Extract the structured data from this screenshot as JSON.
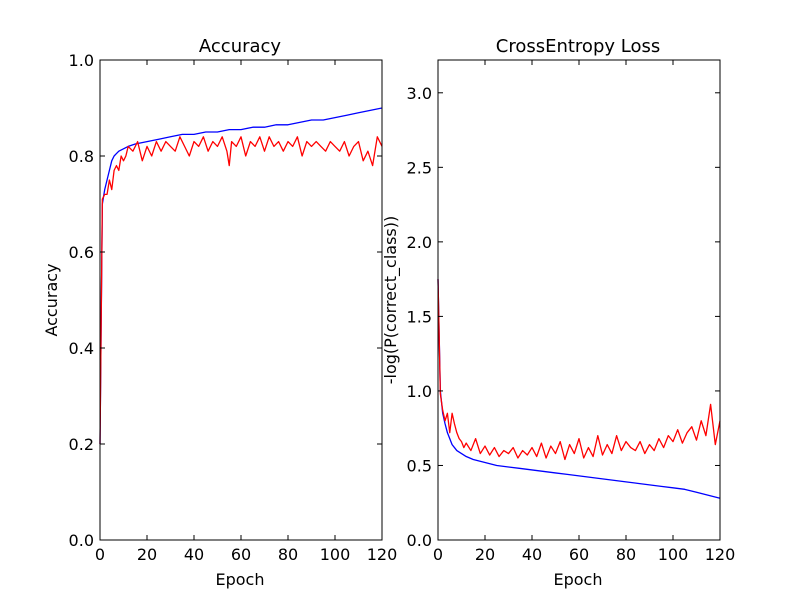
{
  "chart_data": [
    {
      "type": "line",
      "title": "Accuracy",
      "xlabel": "Epoch",
      "ylabel": "Accuracy",
      "xlim": [
        0,
        120
      ],
      "ylim": [
        0,
        1.0
      ],
      "xticks": [
        0,
        20,
        40,
        60,
        80,
        100,
        120
      ],
      "yticks": [
        0.0,
        0.2,
        0.4,
        0.6,
        0.8,
        1.0
      ],
      "xtick_labels": [
        "0",
        "20",
        "40",
        "60",
        "80",
        "100",
        "120"
      ],
      "ytick_labels": [
        "0.0",
        "0.2",
        "0.4",
        "0.6",
        "0.8",
        "1.0"
      ],
      "series": [
        {
          "color": "#0000ff",
          "x": [
            0,
            1,
            2,
            3,
            4,
            5,
            6,
            7,
            8,
            10,
            12,
            15,
            20,
            25,
            30,
            35,
            40,
            45,
            50,
            55,
            60,
            65,
            70,
            75,
            80,
            85,
            90,
            95,
            100,
            105,
            110,
            115,
            120
          ],
          "y": [
            0.2,
            0.7,
            0.73,
            0.75,
            0.77,
            0.79,
            0.8,
            0.805,
            0.81,
            0.815,
            0.82,
            0.825,
            0.83,
            0.835,
            0.84,
            0.845,
            0.845,
            0.85,
            0.85,
            0.855,
            0.855,
            0.86,
            0.86,
            0.865,
            0.865,
            0.87,
            0.875,
            0.875,
            0.88,
            0.885,
            0.89,
            0.895,
            0.9
          ]
        },
        {
          "color": "#ff0000",
          "x": [
            0,
            1,
            2,
            3,
            4,
            5,
            6,
            7,
            8,
            9,
            10,
            11,
            12,
            14,
            16,
            18,
            20,
            22,
            24,
            26,
            28,
            30,
            32,
            34,
            36,
            38,
            40,
            42,
            44,
            46,
            48,
            50,
            52,
            54,
            55,
            56,
            58,
            60,
            62,
            64,
            66,
            68,
            70,
            72,
            74,
            76,
            78,
            80,
            82,
            84,
            86,
            88,
            90,
            92,
            94,
            96,
            98,
            100,
            102,
            104,
            106,
            108,
            110,
            112,
            114,
            116,
            118,
            120
          ],
          "y": [
            0.2,
            0.71,
            0.72,
            0.72,
            0.75,
            0.73,
            0.77,
            0.78,
            0.77,
            0.8,
            0.79,
            0.8,
            0.82,
            0.81,
            0.83,
            0.79,
            0.82,
            0.8,
            0.83,
            0.81,
            0.83,
            0.82,
            0.81,
            0.84,
            0.82,
            0.8,
            0.83,
            0.82,
            0.84,
            0.81,
            0.83,
            0.82,
            0.84,
            0.81,
            0.78,
            0.83,
            0.82,
            0.84,
            0.8,
            0.83,
            0.82,
            0.84,
            0.81,
            0.84,
            0.82,
            0.83,
            0.81,
            0.83,
            0.82,
            0.84,
            0.8,
            0.83,
            0.82,
            0.83,
            0.82,
            0.81,
            0.83,
            0.82,
            0.81,
            0.83,
            0.8,
            0.82,
            0.83,
            0.79,
            0.81,
            0.78,
            0.84,
            0.82
          ]
        }
      ]
    },
    {
      "type": "line",
      "title": "CrossEntropy Loss",
      "xlabel": "Epoch",
      "ylabel": "-log(P(correct_class))",
      "xlim": [
        0,
        120
      ],
      "ylim": [
        0,
        3.22
      ],
      "xticks": [
        0,
        20,
        40,
        60,
        80,
        100,
        120
      ],
      "yticks": [
        0.0,
        0.5,
        1.0,
        1.5,
        2.0,
        2.5,
        3.0
      ],
      "xtick_labels": [
        "0",
        "20",
        "40",
        "60",
        "80",
        "100",
        "120"
      ],
      "ytick_labels": [
        "0.0",
        "0.5",
        "1.0",
        "1.5",
        "2.0",
        "2.5",
        "3.0"
      ],
      "series": [
        {
          "color": "#0000ff",
          "x": [
            0,
            1,
            2,
            3,
            4,
            5,
            6,
            7,
            8,
            10,
            12,
            15,
            20,
            25,
            30,
            35,
            40,
            45,
            50,
            55,
            60,
            65,
            70,
            75,
            80,
            85,
            90,
            95,
            100,
            105,
            110,
            115,
            120
          ],
          "y": [
            1.75,
            1.0,
            0.85,
            0.78,
            0.72,
            0.68,
            0.64,
            0.62,
            0.6,
            0.58,
            0.56,
            0.54,
            0.52,
            0.5,
            0.49,
            0.48,
            0.47,
            0.46,
            0.45,
            0.44,
            0.43,
            0.42,
            0.41,
            0.4,
            0.39,
            0.38,
            0.37,
            0.36,
            0.35,
            0.34,
            0.32,
            0.3,
            0.28
          ]
        },
        {
          "color": "#ff0000",
          "x": [
            0,
            1,
            2,
            3,
            4,
            5,
            6,
            7,
            8,
            9,
            10,
            11,
            12,
            14,
            16,
            18,
            20,
            22,
            24,
            26,
            28,
            30,
            32,
            34,
            36,
            38,
            40,
            42,
            44,
            46,
            48,
            50,
            52,
            54,
            56,
            58,
            60,
            62,
            64,
            66,
            68,
            70,
            72,
            74,
            76,
            78,
            80,
            82,
            84,
            86,
            88,
            90,
            92,
            94,
            96,
            98,
            100,
            102,
            104,
            106,
            108,
            110,
            112,
            114,
            116,
            118,
            120
          ],
          "y": [
            1.75,
            0.98,
            0.87,
            0.8,
            0.85,
            0.72,
            0.85,
            0.78,
            0.72,
            0.68,
            0.66,
            0.62,
            0.65,
            0.6,
            0.68,
            0.58,
            0.63,
            0.57,
            0.62,
            0.56,
            0.6,
            0.58,
            0.62,
            0.55,
            0.6,
            0.57,
            0.62,
            0.56,
            0.65,
            0.55,
            0.63,
            0.58,
            0.66,
            0.54,
            0.64,
            0.58,
            0.68,
            0.55,
            0.62,
            0.56,
            0.7,
            0.57,
            0.64,
            0.58,
            0.7,
            0.6,
            0.66,
            0.62,
            0.6,
            0.66,
            0.58,
            0.64,
            0.6,
            0.68,
            0.62,
            0.7,
            0.66,
            0.74,
            0.65,
            0.72,
            0.76,
            0.67,
            0.8,
            0.7,
            0.91,
            0.64,
            0.8
          ]
        }
      ]
    }
  ]
}
